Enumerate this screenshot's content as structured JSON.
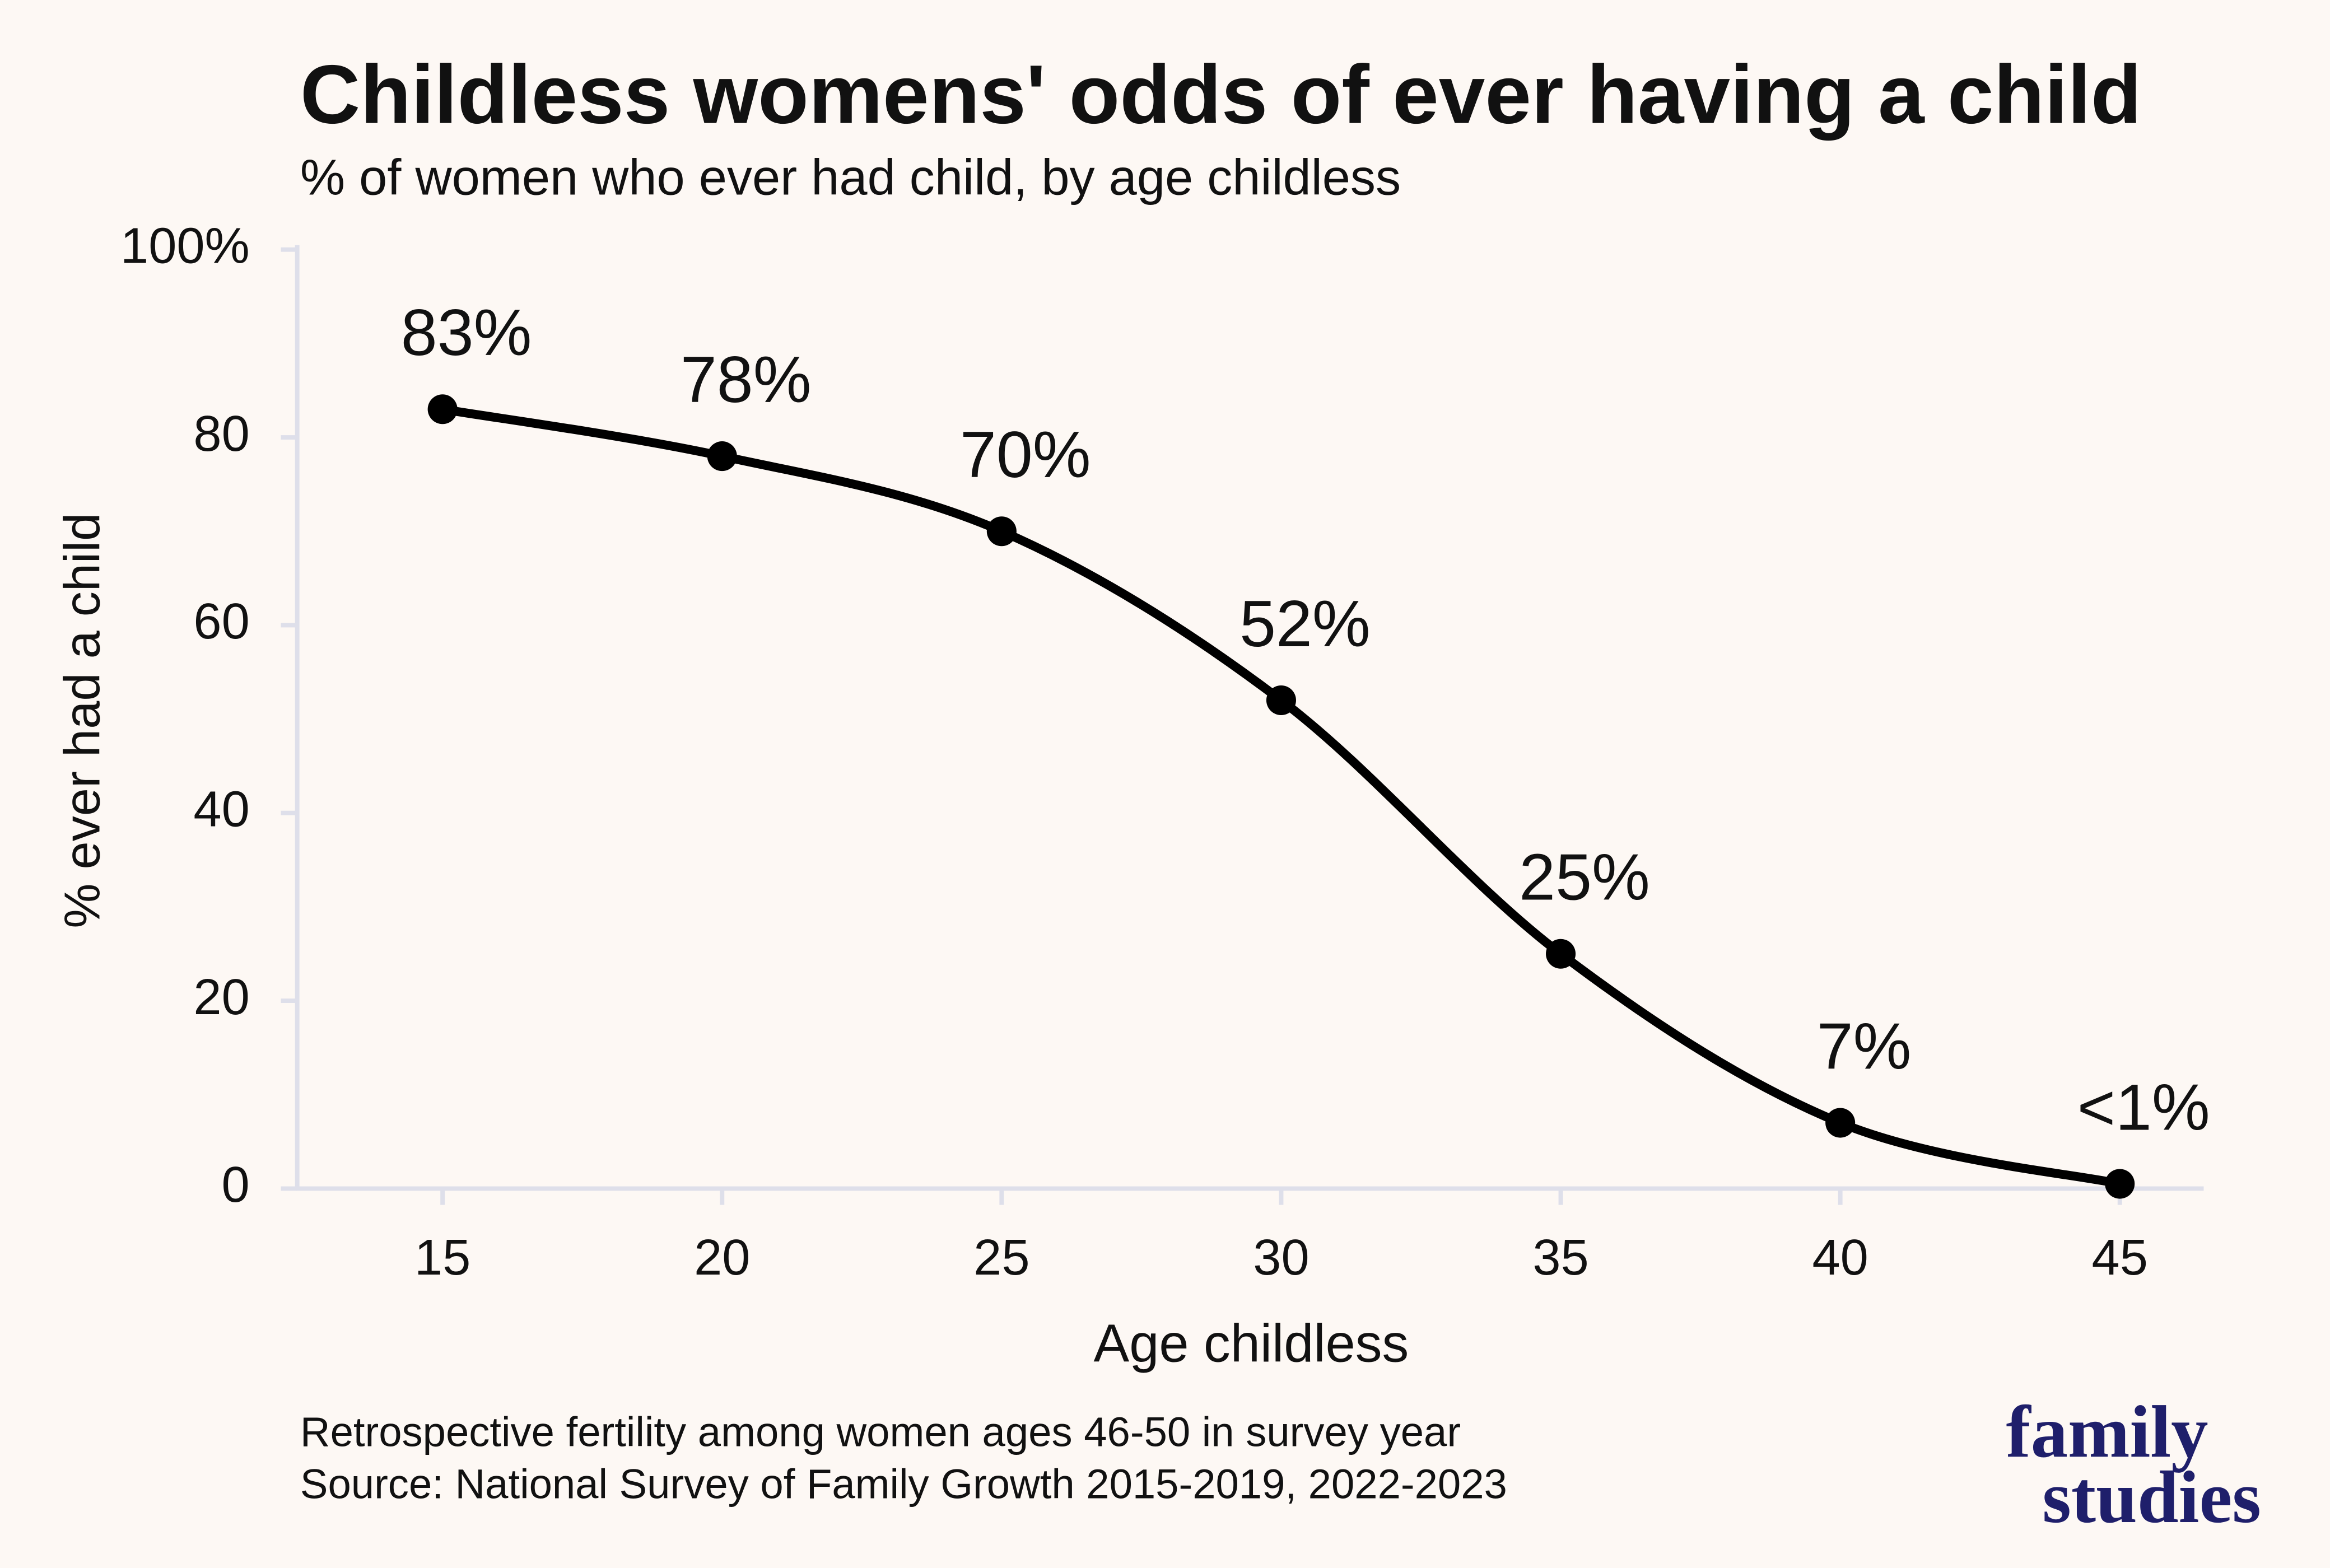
{
  "chart_data": {
    "type": "line",
    "title": "Childless womens' odds of ever having a child",
    "subtitle": "% of women who ever had child, by age childless",
    "x_label": "Age childless",
    "y_label": "% ever had a child",
    "x": [
      15,
      20,
      25,
      30,
      35,
      40,
      45
    ],
    "series": [
      {
        "color": "#000000",
        "values": [
          83,
          78,
          70,
          52,
          25,
          7,
          0.5
        ],
        "value_labels": [
          "83%",
          "78%",
          "70%",
          "52%",
          "25%",
          "7%",
          "<1%"
        ]
      }
    ],
    "xlim": [
      12.4,
      46.5
    ],
    "xticks": [
      15,
      20,
      25,
      30,
      35,
      40,
      45
    ],
    "ylim": [
      0,
      100
    ],
    "yticks": [
      0,
      20,
      40,
      60,
      80,
      {
        "value": 100,
        "label": "100%"
      }
    ],
    "grid": false,
    "notes": [
      "Retrospective fertility among women ages 46-50 in survey year",
      "Source: National Survey of Family Growth 2015-2019, 2022-2023"
    ]
  },
  "logo": [
    "family",
    "studies"
  ]
}
